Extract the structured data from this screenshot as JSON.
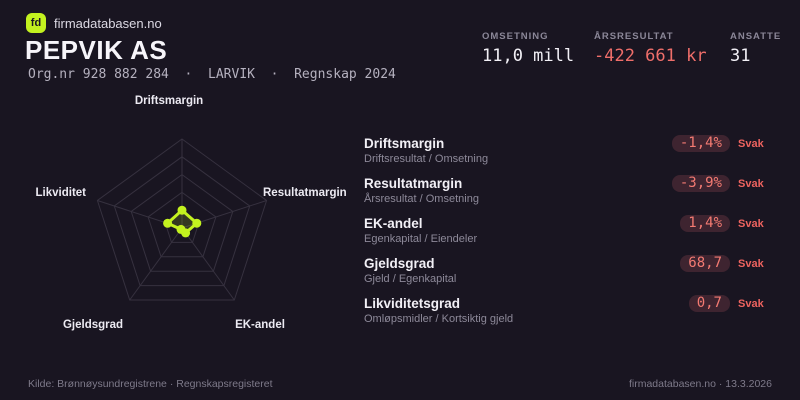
{
  "brand": {
    "logo_text": "fd",
    "site_name": "firmadatabasen.no"
  },
  "header": {
    "company_name": "PEPVIK AS",
    "org_line": "Org.nr 928 882 284  ·  LARVIK  ·  Regnskap 2024"
  },
  "stats": [
    {
      "label": "OMSETNING",
      "value": "11,0 mill",
      "tone": "normal"
    },
    {
      "label": "ÅRSRESULTAT",
      "value": "-422 661 kr",
      "tone": "negative"
    },
    {
      "label": "ANSATTE",
      "value": "31",
      "tone": "normal"
    }
  ],
  "chart_data": {
    "type": "radar",
    "axes": [
      "Driftsmargin",
      "Resultatmargin",
      "EK-andel",
      "Gjeldsgrad",
      "Likviditet"
    ],
    "axis_values_raw": [
      "-1,4%",
      "-3,9%",
      "1,4%",
      "68,7",
      "0,7"
    ],
    "values_normalized": [
      0.2,
      0.175,
      0.068,
      0.02,
      0.17
    ],
    "ring_fractions": [
      0.2,
      0.4,
      0.6,
      0.8,
      1.0
    ],
    "grid": true,
    "legend": false
  },
  "metrics": {
    "rows": [
      {
        "name": "Driftsmargin",
        "formula": "Driftsresultat / Omsetning",
        "value": "-1,4%",
        "rating": "Svak"
      },
      {
        "name": "Resultatmargin",
        "formula": "Årsresultat / Omsetning",
        "value": "-3,9%",
        "rating": "Svak"
      },
      {
        "name": "EK-andel",
        "formula": "Egenkapital / Eiendeler",
        "value": "1,4%",
        "rating": "Svak"
      },
      {
        "name": "Gjeldsgrad",
        "formula": "Gjeld / Egenkapital",
        "value": "68,7",
        "rating": "Svak"
      },
      {
        "name": "Likviditetsgrad",
        "formula": "Omløpsmidler / Kortsiktig gjeld",
        "value": "0,7",
        "rating": "Svak"
      }
    ]
  },
  "footer": {
    "left": "Kilde: Brønnøysundregistrene · Regnskapsregisteret",
    "right": "firmadatabasen.no · 13.3.2026"
  },
  "colors": {
    "background": "#191521",
    "accent_lime": "#c3f21f",
    "negative_red": "#ef6e6a",
    "pill_background": "#3e2430",
    "grid_line": "#36313f",
    "radar_fill_opacity": 0.16
  }
}
